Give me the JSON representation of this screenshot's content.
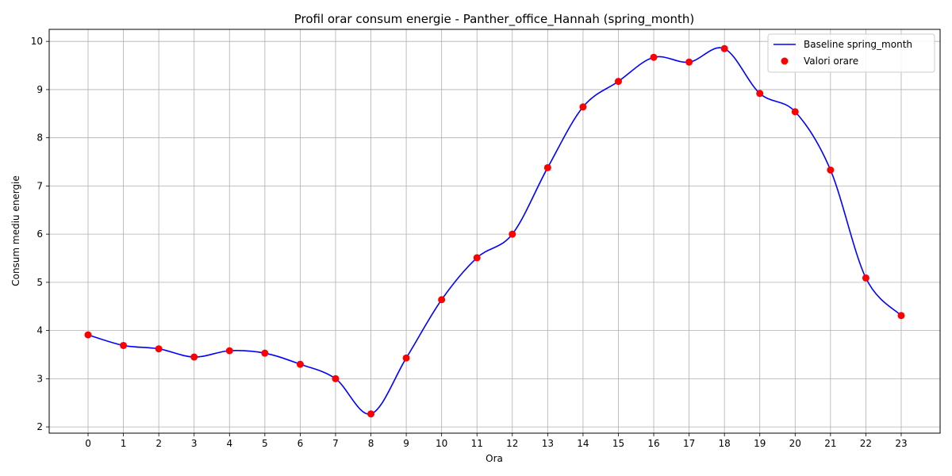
{
  "chart_data": {
    "type": "line",
    "title": "Profil orar consum energie - Panther_office_Hannah (spring_month)",
    "xlabel": "Ora",
    "ylabel": "Consum mediu energie",
    "x": [
      0,
      1,
      2,
      3,
      4,
      5,
      6,
      7,
      8,
      9,
      10,
      11,
      12,
      13,
      14,
      15,
      16,
      17,
      18,
      19,
      20,
      21,
      22,
      23
    ],
    "xticks": [
      "0",
      "1",
      "2",
      "3",
      "4",
      "5",
      "6",
      "7",
      "8",
      "9",
      "10",
      "11",
      "12",
      "13",
      "14",
      "15",
      "16",
      "17",
      "18",
      "19",
      "20",
      "21",
      "22",
      "23"
    ],
    "xlim": [
      -1.1,
      24.1
    ],
    "ylim": [
      1.87,
      10.25
    ],
    "yticks": [
      2,
      3,
      4,
      5,
      6,
      7,
      8,
      9,
      10
    ],
    "ytick_labels": [
      "2",
      "3",
      "4",
      "5",
      "6",
      "7",
      "8",
      "9",
      "10"
    ],
    "grid": true,
    "legend_position": "top-right",
    "series": [
      {
        "name": "Baseline spring_month",
        "kind": "line",
        "color": "#0000ff",
        "values": [
          3.91,
          3.69,
          3.62,
          3.45,
          3.58,
          3.53,
          3.3,
          3.0,
          2.27,
          3.43,
          4.64,
          5.51,
          6.0,
          7.38,
          8.64,
          9.17,
          9.67,
          9.57,
          9.85,
          8.92,
          8.54,
          7.33,
          5.09,
          4.31
        ]
      },
      {
        "name": "Valori orare",
        "kind": "scatter",
        "color": "#ff0000",
        "values": [
          3.91,
          3.69,
          3.62,
          3.45,
          3.58,
          3.53,
          3.3,
          3.0,
          2.27,
          3.43,
          4.64,
          5.51,
          6.0,
          7.38,
          8.64,
          9.17,
          9.67,
          9.57,
          9.85,
          8.92,
          8.54,
          7.33,
          5.09,
          4.31
        ]
      }
    ]
  }
}
